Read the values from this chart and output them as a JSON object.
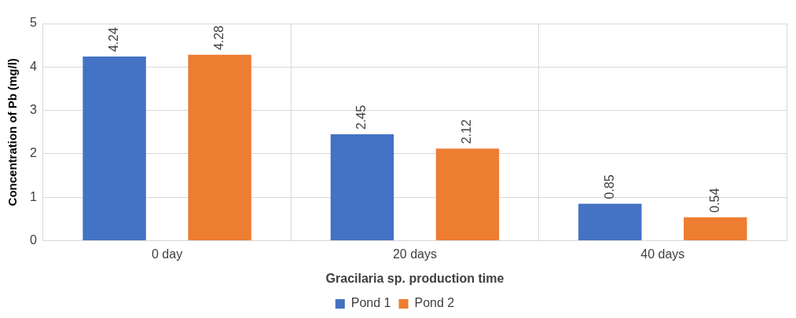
{
  "chart_data": {
    "type": "bar",
    "xlabel": "Gracilaria sp. production time",
    "ylabel": "Concentration of Pb (mg/l)",
    "categories": [
      "0 day",
      "20 days",
      "40 days"
    ],
    "series": [
      {
        "name": "Pond 1",
        "color": "#4472c4",
        "values": [
          4.24,
          2.45,
          0.85
        ]
      },
      {
        "name": "Pond 2",
        "color": "#ed7d31",
        "values": [
          4.28,
          2.12,
          0.54
        ]
      }
    ],
    "ylim": [
      0,
      5
    ],
    "yticks": [
      0,
      1,
      2,
      3,
      4,
      5
    ],
    "grid": true,
    "legend": "bottom",
    "data_labels": true
  }
}
